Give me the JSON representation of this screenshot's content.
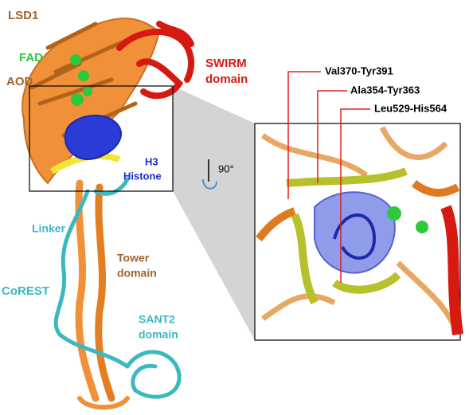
{
  "labels": {
    "lsd1": "LSD1",
    "fad": "FAD",
    "aod": "AOD",
    "swirm": [
      "SWIRM",
      "domain"
    ],
    "h3": [
      "H3",
      "Histone"
    ],
    "rotation": "90°",
    "linker": "Linker",
    "tower": [
      "Tower",
      "domain"
    ],
    "corest": "CoREST",
    "sant2": [
      "SANT2",
      "domain"
    ]
  },
  "callouts": [
    "Val370-Tyr391",
    "Ala354-Tyr363",
    "Leu529-His564"
  ]
}
